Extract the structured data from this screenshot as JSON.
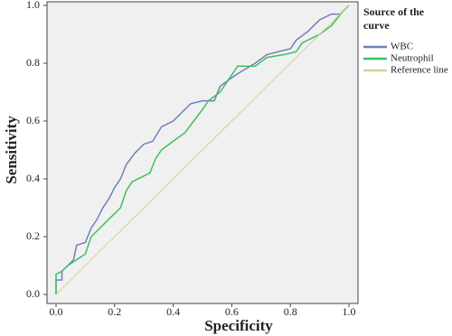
{
  "chart_data": {
    "type": "line",
    "x_label": "Specificity",
    "y_label": "Sensitivity",
    "legend_title": "Source of the curve",
    "legend": "right",
    "xlim": [
      0,
      1
    ],
    "ylim": [
      0,
      1
    ],
    "xticks": [
      {
        "value": 0,
        "label": "0.0"
      },
      0.2,
      0.4,
      0.6,
      0.8,
      {
        "value": 1,
        "label": "1.0"
      }
    ],
    "yticks": [
      {
        "value": 0,
        "label": "0.0"
      },
      0.2,
      0.4,
      0.6,
      0.8,
      {
        "value": 1,
        "label": "1.0"
      }
    ],
    "series": [
      {
        "name": "WBC",
        "color": "#6f7fb8",
        "x": [
          0,
          0,
          0.02,
          0.02,
          0.04,
          0.06,
          0.07,
          0.1,
          0.12,
          0.14,
          0.16,
          0.18,
          0.2,
          0.22,
          0.24,
          0.27,
          0.3,
          0.33,
          0.36,
          0.4,
          0.43,
          0.46,
          0.5,
          0.54,
          0.56,
          0.6,
          0.63,
          0.68,
          0.72,
          0.76,
          0.8,
          0.82,
          0.86,
          0.9,
          0.94,
          0.97,
          1
        ],
        "values": [
          0,
          0.05,
          0.05,
          0.08,
          0.1,
          0.12,
          0.17,
          0.18,
          0.23,
          0.26,
          0.3,
          0.33,
          0.37,
          0.4,
          0.45,
          0.49,
          0.52,
          0.53,
          0.58,
          0.6,
          0.63,
          0.66,
          0.67,
          0.67,
          0.72,
          0.75,
          0.77,
          0.8,
          0.83,
          0.84,
          0.85,
          0.88,
          0.91,
          0.95,
          0.97,
          0.97,
          1
        ]
      },
      {
        "name": "Neutrophil",
        "color": "#3fbf5f",
        "x": [
          0,
          0,
          0.02,
          0.04,
          0.07,
          0.1,
          0.12,
          0.14,
          0.18,
          0.22,
          0.24,
          0.26,
          0.32,
          0.34,
          0.36,
          0.4,
          0.44,
          0.47,
          0.5,
          0.52,
          0.56,
          0.6,
          0.62,
          0.68,
          0.72,
          0.78,
          0.82,
          0.84,
          0.9,
          0.94,
          0.98,
          1
        ],
        "values": [
          0,
          0.07,
          0.08,
          0.1,
          0.12,
          0.14,
          0.2,
          0.22,
          0.26,
          0.3,
          0.36,
          0.39,
          0.42,
          0.47,
          0.5,
          0.53,
          0.56,
          0.6,
          0.64,
          0.67,
          0.7,
          0.76,
          0.79,
          0.79,
          0.82,
          0.83,
          0.84,
          0.87,
          0.9,
          0.93,
          0.98,
          1
        ]
      },
      {
        "name": "Reference line",
        "color": "#d2d29a",
        "x": [
          0,
          1
        ],
        "values": [
          0,
          1
        ]
      }
    ]
  }
}
